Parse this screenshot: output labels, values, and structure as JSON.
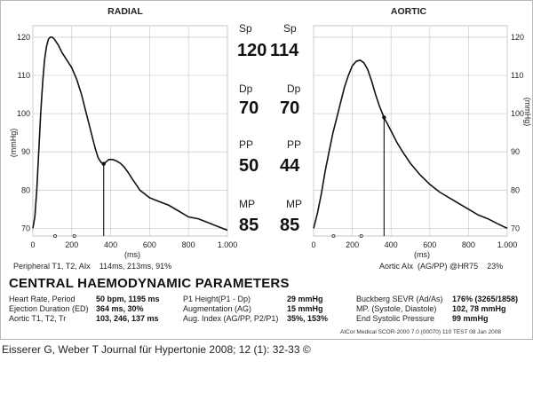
{
  "chart_data": [
    {
      "type": "line",
      "title": "RADIAL",
      "xlabel": "(ms)",
      "ylabel": "(mmHg)",
      "xlim": [
        0,
        1000
      ],
      "ylim": [
        68,
        123
      ],
      "xticks": [
        0,
        200,
        400,
        600,
        800,
        1000
      ],
      "xtick_labels": [
        "0",
        "200",
        "400",
        "600",
        "800",
        "1.000"
      ],
      "yticks": [
        70,
        80,
        90,
        100,
        110,
        120
      ],
      "grid": true,
      "series": [
        {
          "x": [
            0,
            10,
            20,
            30,
            40,
            50,
            60,
            70,
            80,
            90,
            100,
            110,
            130,
            150,
            175,
            200,
            225,
            250,
            275,
            300,
            320,
            335,
            350,
            362,
            375,
            390,
            410,
            430,
            450,
            470,
            490,
            510,
            530,
            550,
            575,
            600,
            650,
            700,
            750,
            800,
            850,
            900,
            950,
            1000
          ],
          "y": [
            70,
            73,
            80,
            90,
            100,
            108,
            114,
            117.5,
            119.5,
            120,
            120,
            119.5,
            118,
            116,
            114,
            112,
            109,
            105,
            100,
            95,
            91,
            88.5,
            87.3,
            86.8,
            87.3,
            88,
            88,
            87.6,
            87,
            86,
            84.6,
            83,
            81.5,
            80,
            79,
            78,
            77,
            76,
            74.5,
            73,
            72.5,
            71.5,
            70.5,
            69.5
          ]
        }
      ],
      "markers": [
        {
          "label": "T1",
          "x": 114
        },
        {
          "label": "T2",
          "x": 213
        }
      ],
      "annotation": "Peripheral T1, T2, AIx    114ms, 213ms, 91%"
    },
    {
      "type": "line",
      "title": "AORTIC",
      "xlabel": "(ms)",
      "ylabel": "(mmHg)",
      "xlim": [
        0,
        1000
      ],
      "ylim": [
        68,
        123
      ],
      "xticks": [
        0,
        200,
        400,
        600,
        800,
        1000
      ],
      "xtick_labels": [
        "0",
        "200",
        "400",
        "600",
        "800",
        "1.000"
      ],
      "yticks": [
        70,
        80,
        90,
        100,
        110,
        120
      ],
      "grid": true,
      "series": [
        {
          "x": [
            0,
            20,
            40,
            60,
            80,
            100,
            120,
            140,
            160,
            180,
            200,
            220,
            240,
            260,
            280,
            300,
            320,
            340,
            360,
            370,
            380,
            400,
            430,
            460,
            500,
            550,
            600,
            650,
            700,
            750,
            800,
            850,
            900,
            950,
            1000
          ],
          "y": [
            70,
            74,
            79,
            85,
            90,
            95,
            99,
            103,
            107,
            110,
            112.5,
            113.7,
            114,
            113.3,
            111.5,
            108.5,
            105,
            102,
            99.5,
            98.3,
            97.5,
            95.5,
            92.5,
            90,
            87,
            84,
            81.5,
            79.5,
            78,
            76.5,
            75,
            73.5,
            72.5,
            71.2,
            70
          ]
        }
      ],
      "markers": [
        {
          "label": "T1",
          "x": 103
        },
        {
          "label": "T2",
          "x": 246
        }
      ],
      "annotation": "Aortic AIx  (AG/PP) @HR75    23%"
    }
  ],
  "pressures": [
    {
      "label": "Sp",
      "radial": "120",
      "aortic": "114"
    },
    {
      "label": "Dp",
      "radial": "70",
      "aortic": "70"
    },
    {
      "label": "PP",
      "radial": "50",
      "aortic": "44"
    },
    {
      "label": "MP",
      "radial": "85",
      "aortic": "85"
    }
  ],
  "central": {
    "heading": "CENTRAL HAEMODYNAMIC PARAMETERS",
    "col1": [
      {
        "label": "Heart Rate, Period",
        "value": "50 bpm, 1195 ms"
      },
      {
        "label": "Ejection Duration (ED)",
        "value": "364 ms, 30%"
      },
      {
        "label": "Aortic T1, T2, Tr",
        "value": "103, 246, 137 ms"
      }
    ],
    "col2": [
      {
        "label": "P1 Height(P1 - Dp)",
        "value": "29 mmHg"
      },
      {
        "label": "Augmentation (AG)",
        "value": "15 mmHg"
      },
      {
        "label": "Aug. Index (AG/PP, P2/P1)",
        "value": "35%, 153%"
      }
    ],
    "col3": [
      {
        "label": "Buckberg SEVR (Ad/As)",
        "value": "176% (3265/1858)"
      },
      {
        "label": "MP. (Systole, Diastole)",
        "value": "102, 78 mmHg"
      },
      {
        "label": "End Systolic Pressure",
        "value": "99 mmHg"
      }
    ]
  },
  "footer": "AtCor Medical SCOR-2000 7.0 (00070) 110 TEST  08 Jan 2008",
  "citation": "Eisserer G, Weber T Journal für Hypertonie 2008; 12 (1): 32-33 ©"
}
